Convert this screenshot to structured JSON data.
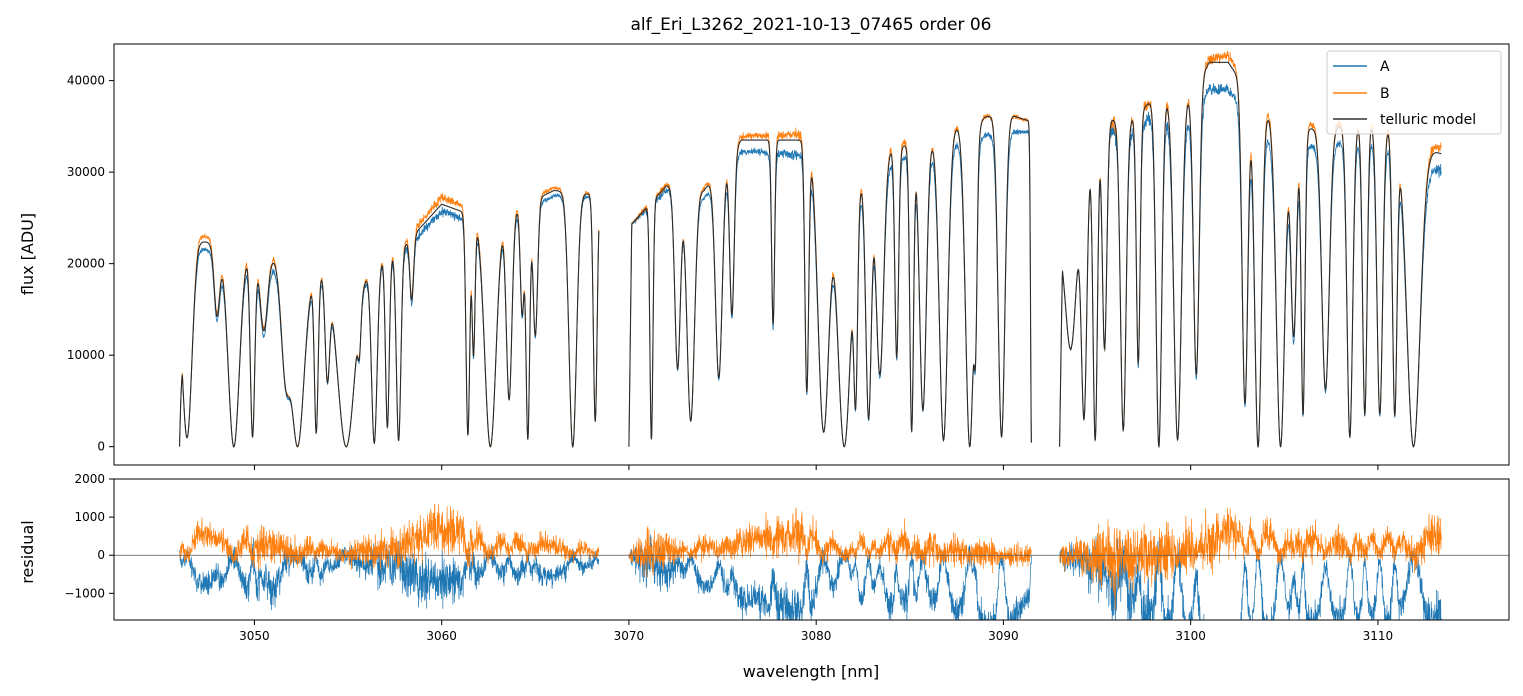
{
  "chart_data": [
    {
      "panel": "top",
      "type": "line",
      "title": "alf_Eri_L3262_2021-10-13_07465  order 06",
      "xlabel": "",
      "ylabel": "flux [ADU]",
      "xlim": [
        3042.5,
        3117
      ],
      "ylim": [
        -2000,
        44000
      ],
      "yticks": [
        0,
        10000,
        20000,
        30000,
        40000
      ],
      "ytick_labels": [
        "0",
        "10000",
        "20000",
        "30000",
        "40000"
      ],
      "xticks": [
        3050,
        3060,
        3070,
        3080,
        3090,
        3100,
        3110
      ],
      "grid": false,
      "legend": {
        "location": "top-right",
        "entries": [
          "A",
          "B",
          "telluric model"
        ]
      },
      "colors": {
        "A": "#1f77b4",
        "B": "#ff7f0e",
        "telluric model": "#333333"
      },
      "segments": [
        [
          3046.0,
          3068.4
        ],
        [
          3070.0,
          3091.5
        ],
        [
          3093.0,
          3113.4
        ]
      ],
      "continuum_model": [
        [
          3046.0,
          18000
        ],
        [
          3047.0,
          22500
        ],
        [
          3050.0,
          21500
        ],
        [
          3053.0,
          19000
        ],
        [
          3056.0,
          19500
        ],
        [
          3058.0,
          22000
        ],
        [
          3060.0,
          26500
        ],
        [
          3062.0,
          25000
        ],
        [
          3064.0,
          26000
        ],
        [
          3066.0,
          28000
        ],
        [
          3068.4,
          27500
        ],
        [
          3070.0,
          24000
        ],
        [
          3072.0,
          28500
        ],
        [
          3074.0,
          28000
        ],
        [
          3076.0,
          33500
        ],
        [
          3080.0,
          33500
        ],
        [
          3082.0,
          29000
        ],
        [
          3084.0,
          32500
        ],
        [
          3086.0,
          33500
        ],
        [
          3088.0,
          35500
        ],
        [
          3090.0,
          36500
        ],
        [
          3091.5,
          35500
        ],
        [
          3093.0,
          23000
        ],
        [
          3095.0,
          35500
        ],
        [
          3097.0,
          36000
        ],
        [
          3098.0,
          38000
        ],
        [
          3100.0,
          38500
        ],
        [
          3101.0,
          42000
        ],
        [
          3102.0,
          42000
        ],
        [
          3103.0,
          39000
        ],
        [
          3105.0,
          34500
        ],
        [
          3108.0,
          35000
        ],
        [
          3110.0,
          35500
        ],
        [
          3112.0,
          33000
        ],
        [
          3113.4,
          32000
        ]
      ],
      "ratio_A_to_model": [
        [
          3046.0,
          0.97
        ],
        [
          3050.0,
          0.95
        ],
        [
          3056.0,
          0.98
        ],
        [
          3060.0,
          0.97
        ],
        [
          3066.0,
          0.98
        ],
        [
          3070.0,
          1.0
        ],
        [
          3074.0,
          0.97
        ],
        [
          3080.0,
          0.95
        ],
        [
          3086.0,
          0.96
        ],
        [
          3090.0,
          0.94
        ],
        [
          3093.0,
          1.0
        ],
        [
          3098.0,
          0.95
        ],
        [
          3101.0,
          0.93
        ],
        [
          3103.0,
          0.93
        ],
        [
          3108.0,
          0.95
        ],
        [
          3113.4,
          0.94
        ]
      ],
      "ratio_B_to_model": [
        [
          3046.0,
          1.03
        ],
        [
          3050.0,
          1.02
        ],
        [
          3056.0,
          1.01
        ],
        [
          3060.0,
          1.03
        ],
        [
          3066.0,
          1.01
        ],
        [
          3070.0,
          1.0
        ],
        [
          3074.0,
          1.01
        ],
        [
          3080.0,
          1.02
        ],
        [
          3086.0,
          1.01
        ],
        [
          3090.0,
          1.0
        ],
        [
          3093.0,
          1.0
        ],
        [
          3098.0,
          1.0
        ],
        [
          3101.0,
          1.01
        ],
        [
          3103.0,
          1.02
        ],
        [
          3108.0,
          1.01
        ],
        [
          3113.4,
          1.02
        ]
      ],
      "absorption_lines": [
        [
          3046.4,
          0.25,
          0.95
        ],
        [
          3048.0,
          0.15,
          0.35
        ],
        [
          3048.9,
          0.3,
          1.0
        ],
        [
          3049.9,
          0.12,
          0.95
        ],
        [
          3050.5,
          0.2,
          0.4
        ],
        [
          3051.7,
          0.25,
          0.62
        ],
        [
          3052.3,
          0.35,
          1.0
        ],
        [
          3053.3,
          0.1,
          0.92
        ],
        [
          3053.9,
          0.12,
          0.6
        ],
        [
          3054.9,
          0.45,
          1.0
        ],
        [
          3055.6,
          0.08,
          0.3
        ],
        [
          3056.4,
          0.15,
          0.98
        ],
        [
          3057.1,
          0.1,
          0.9
        ],
        [
          3057.7,
          0.12,
          0.97
        ],
        [
          3058.4,
          0.1,
          0.3
        ],
        [
          3061.4,
          0.1,
          0.95
        ],
        [
          3061.7,
          0.08,
          0.6
        ],
        [
          3062.6,
          0.3,
          1.0
        ],
        [
          3063.6,
          0.15,
          0.8
        ],
        [
          3064.3,
          0.1,
          0.45
        ],
        [
          3064.6,
          0.1,
          0.97
        ],
        [
          3065.0,
          0.12,
          0.55
        ],
        [
          3067.0,
          0.2,
          1.0
        ],
        [
          3068.2,
          0.1,
          0.9
        ],
        [
          3071.2,
          0.08,
          0.97
        ],
        [
          3072.6,
          0.15,
          0.7
        ],
        [
          3073.3,
          0.2,
          0.9
        ],
        [
          3074.8,
          0.18,
          0.75
        ],
        [
          3075.5,
          0.12,
          0.55
        ],
        [
          3077.7,
          0.08,
          0.6
        ],
        [
          3079.5,
          0.1,
          0.82
        ],
        [
          3080.4,
          0.3,
          0.95
        ],
        [
          3081.5,
          0.35,
          1.0
        ],
        [
          3082.1,
          0.1,
          0.82
        ],
        [
          3082.8,
          0.15,
          0.9
        ],
        [
          3083.4,
          0.2,
          0.75
        ],
        [
          3084.3,
          0.1,
          0.7
        ],
        [
          3085.1,
          0.1,
          0.95
        ],
        [
          3085.7,
          0.18,
          0.88
        ],
        [
          3086.8,
          0.22,
          0.98
        ],
        [
          3088.2,
          0.22,
          1.0
        ],
        [
          3088.5,
          0.08,
          0.6
        ],
        [
          3089.9,
          0.18,
          0.97
        ],
        [
          3091.5,
          0.05,
          1.0
        ],
        [
          3093.6,
          0.3,
          0.6
        ],
        [
          3094.3,
          0.15,
          0.9
        ],
        [
          3094.9,
          0.12,
          0.98
        ],
        [
          3095.4,
          0.12,
          0.7
        ],
        [
          3096.4,
          0.15,
          0.95
        ],
        [
          3097.2,
          0.1,
          0.75
        ],
        [
          3098.3,
          0.15,
          1.0
        ],
        [
          3099.3,
          0.2,
          0.98
        ],
        [
          3100.3,
          0.15,
          0.8
        ],
        [
          3102.9,
          0.15,
          0.88
        ],
        [
          3103.6,
          0.18,
          1.0
        ],
        [
          3104.8,
          0.22,
          1.0
        ],
        [
          3105.5,
          0.15,
          0.65
        ],
        [
          3106.0,
          0.1,
          0.9
        ],
        [
          3107.2,
          0.2,
          0.82
        ],
        [
          3108.5,
          0.15,
          0.97
        ],
        [
          3109.3,
          0.12,
          0.9
        ],
        [
          3110.1,
          0.15,
          0.9
        ],
        [
          3110.9,
          0.12,
          0.9
        ],
        [
          3111.9,
          0.35,
          1.0
        ]
      ]
    },
    {
      "panel": "bottom",
      "type": "line",
      "title": "",
      "xlabel": "wavelength [nm]",
      "ylabel": "residual",
      "xlim": [
        3042.5,
        3117
      ],
      "ylim": [
        -1700,
        2000
      ],
      "yticks": [
        -1000,
        0,
        1000,
        2000
      ],
      "ytick_labels": [
        "−1000",
        "0",
        "1000",
        "2000"
      ],
      "xticks": [
        3050,
        3060,
        3070,
        3080,
        3090,
        3100,
        3110
      ],
      "xtick_labels": [
        "3050",
        "3060",
        "3070",
        "3080",
        "3090",
        "3100",
        "3110"
      ],
      "zero_line": true,
      "grid": false,
      "series": [
        {
          "name": "A",
          "color": "#1f77b4"
        },
        {
          "name": "B",
          "color": "#ff7f0e"
        }
      ],
      "residual_envelope": [
        [
          3046.0,
          600
        ],
        [
          3049.0,
          800
        ],
        [
          3050.0,
          1200
        ],
        [
          3053.0,
          900
        ],
        [
          3054.0,
          500
        ],
        [
          3058.0,
          1400
        ],
        [
          3060.0,
          1300
        ],
        [
          3063.0,
          700
        ],
        [
          3066.0,
          600
        ],
        [
          3068.4,
          400
        ],
        [
          3070.0,
          300
        ],
        [
          3071.0,
          1500
        ],
        [
          3073.0,
          500
        ],
        [
          3077.0,
          800
        ],
        [
          3079.0,
          1200
        ],
        [
          3082.0,
          500
        ],
        [
          3085.0,
          900
        ],
        [
          3088.0,
          800
        ],
        [
          3091.5,
          500
        ],
        [
          3093.0,
          600
        ],
        [
          3095.0,
          1700
        ],
        [
          3098.0,
          1600
        ],
        [
          3100.0,
          1200
        ],
        [
          3103.0,
          900
        ],
        [
          3108.0,
          700
        ],
        [
          3111.0,
          700
        ],
        [
          3113.4,
          1400
        ]
      ]
    }
  ]
}
